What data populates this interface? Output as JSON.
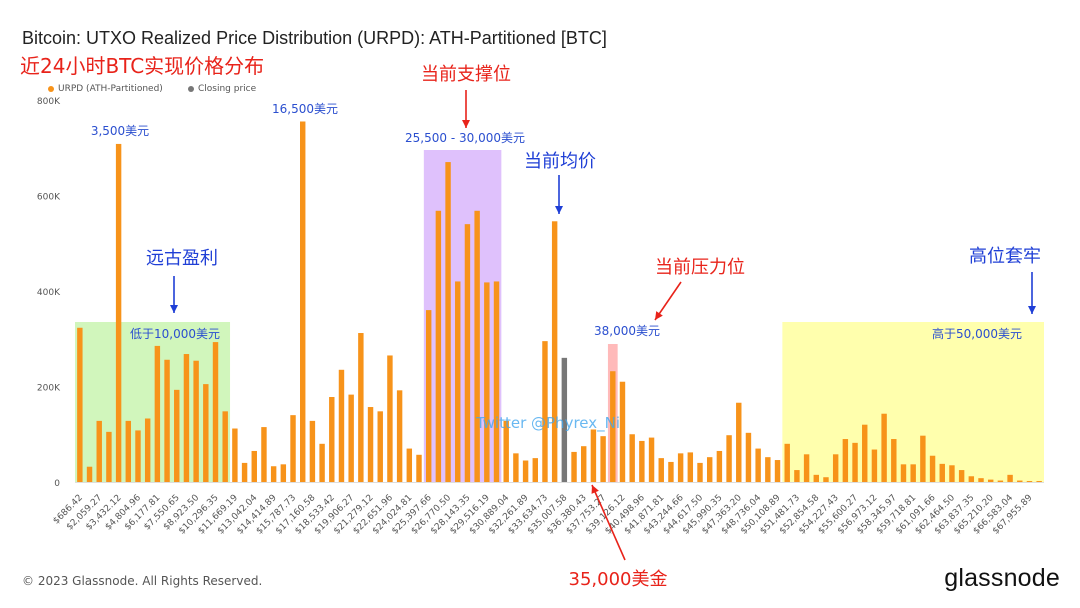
{
  "header": {
    "title": "Bitcoin: UTXO Realized Price Distribution (URPD): ATH-Partitioned [BTC]",
    "subtitle": "近24小时BTC实现价格分布"
  },
  "legend": [
    {
      "label": "URPD (ATH-Partitioned)",
      "color": "#f7931a"
    },
    {
      "label": "Closing price",
      "color": "#777777"
    }
  ],
  "footer": {
    "copyright": "© 2023 Glassnode. All Rights Reserved.",
    "logo": "glassnode"
  },
  "watermark": "Twitter @Phyrex_Ni",
  "chart_data": {
    "type": "bar",
    "title": "Bitcoin: UTXO Realized Price Distribution (URPD): ATH-Partitioned [BTC]",
    "ylim": [
      0,
      800000
    ],
    "y_ticks": [
      "0",
      "200K",
      "400K",
      "600K",
      "800K"
    ],
    "y_tick_values": [
      0,
      200000,
      400000,
      600000,
      800000
    ],
    "grid": false,
    "legend_position": "top-left",
    "x_tick_labels": [
      "$686.42",
      "$2,059.27",
      "$3,432.12",
      "$4,804.96",
      "$6,177.81",
      "$7,550.65",
      "$8,923.50",
      "$10,296.35",
      "$11,669.19",
      "$13,042.04",
      "$14,414.89",
      "$15,787.73",
      "$17,160.58",
      "$18,533.42",
      "$19,906.27",
      "$21,279.12",
      "$22,651.96",
      "$24,024.81",
      "$25,397.66",
      "$26,770.50",
      "$28,143.35",
      "$29,516.19",
      "$30,889.04",
      "$32,261.89",
      "$33,634.73",
      "$35,007.58",
      "$36,380.43",
      "$37,753.27",
      "$39,126.12",
      "$40,498.96",
      "$41,871.81",
      "$43,244.66",
      "$44,617.50",
      "$45,990.35",
      "$47,363.20",
      "$48,736.04",
      "$50,108.89",
      "$51,481.73",
      "$52,854.58",
      "$54,227.43",
      "$55,600.27",
      "$56,973.12",
      "$58,345.97",
      "$59,718.81",
      "$61,091.66",
      "$62,464.50",
      "$63,837.35",
      "$65,210.20",
      "$66,583.04",
      "$67,955.89"
    ],
    "values": [
      323000,
      32000,
      128000,
      105000,
      708000,
      128000,
      108000,
      133000,
      285000,
      256000,
      193000,
      268000,
      254000,
      205000,
      293000,
      148000,
      112000,
      40000,
      65000,
      115000,
      33000,
      37000,
      140000,
      755000,
      128000,
      80000,
      178000,
      235000,
      183000,
      312000,
      157000,
      148000,
      265000,
      192000,
      70000,
      57000,
      360000,
      568000,
      670000,
      420000,
      540000,
      568000,
      418000,
      420000,
      128000,
      60000,
      45000,
      50000,
      295000,
      546000,
      260000,
      63000,
      75000,
      110000,
      96000,
      232000,
      210000,
      100000,
      86000,
      93000,
      50000,
      42000,
      60000,
      62000,
      40000,
      52000,
      65000,
      98000,
      166000,
      103000,
      70000,
      52000,
      46000,
      80000,
      25000,
      58000,
      15000,
      10000,
      58000,
      90000,
      82000,
      120000,
      68000,
      143000,
      90000,
      37000,
      37000,
      97000,
      55000,
      38000,
      35000,
      25000,
      12000,
      8000,
      5000,
      3000,
      15000,
      3000,
      2000,
      2000
    ],
    "closing_price_index": 50,
    "series": [
      {
        "name": "URPD (ATH-Partitioned)",
        "color": "#f7931a"
      },
      {
        "name": "Closing price",
        "color": "#777777"
      }
    ],
    "annotations": {
      "bar_labels": [
        {
          "text": "3,500美元",
          "bar": 4
        },
        {
          "text": "16,500美元",
          "bar": 23
        },
        {
          "text": "25,500 - 30,000美元",
          "bar": 40
        },
        {
          "text": "38,000美元",
          "bar": 55
        }
      ],
      "zone_labels": [
        "低于10,000美元",
        "高于50,000美元"
      ],
      "callouts": [
        "远古盈利",
        "当前支撑位",
        "当前均价",
        "当前压力位",
        "高位套牢",
        "35,000美金"
      ]
    },
    "highlight_colors": {
      "green": "#c9f5b0",
      "purple": "#d9b6fb",
      "pink": "#ffb3b3",
      "yellow": "#ffff99"
    }
  }
}
